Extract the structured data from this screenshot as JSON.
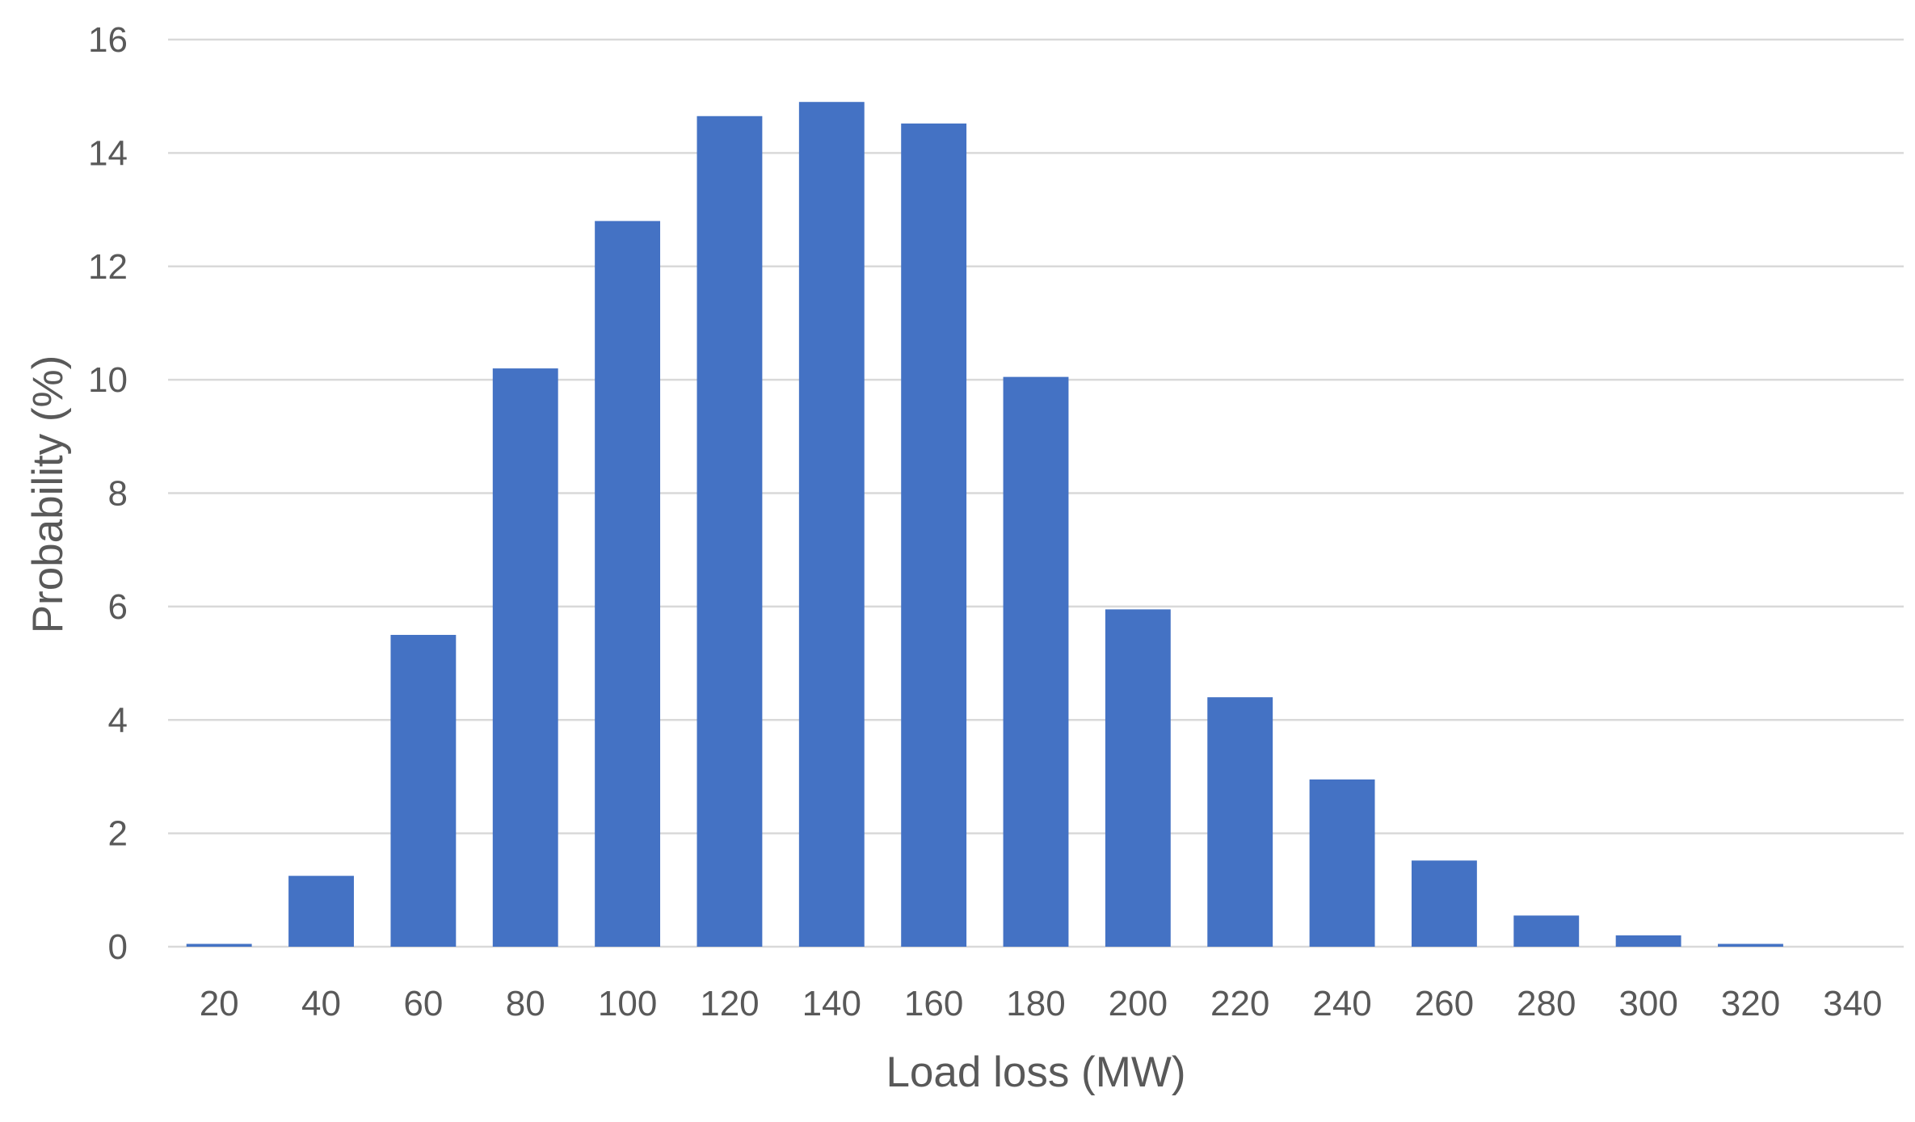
{
  "chart_data": {
    "type": "bar",
    "title": "",
    "xlabel": "Load loss (MW)",
    "ylabel": "Probability (%)",
    "categories": [
      "20",
      "40",
      "60",
      "80",
      "100",
      "120",
      "140",
      "160",
      "180",
      "200",
      "220",
      "240",
      "260",
      "280",
      "300",
      "320",
      "340"
    ],
    "values": [
      0.05,
      1.25,
      5.5,
      10.2,
      12.8,
      14.65,
      14.9,
      14.52,
      10.05,
      5.95,
      4.4,
      2.95,
      1.52,
      0.55,
      0.2,
      0.05,
      0
    ],
    "ylim": [
      0,
      16
    ],
    "yticks": [
      "0",
      "2",
      "4",
      "6",
      "8",
      "10",
      "12",
      "14",
      "16"
    ],
    "grid": true,
    "legend": "none",
    "bar_color": "#4472c4"
  }
}
